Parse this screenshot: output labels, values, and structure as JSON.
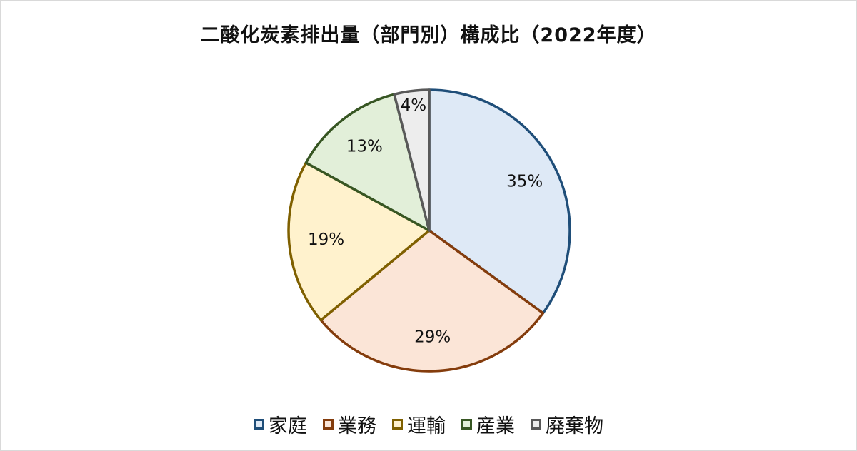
{
  "chart_data": {
    "type": "pie",
    "title": "二酸化炭素排出量（部門別）構成比（2022年度）",
    "categories": [
      "家庭",
      "業務",
      "運輸",
      "産業",
      "廃棄物"
    ],
    "values": [
      35,
      29,
      19,
      13,
      4
    ],
    "labels": [
      "35%",
      "29%",
      "19%",
      "13%",
      "4%"
    ],
    "fill_colors": [
      "#dee9f6",
      "#fbe5d7",
      "#fff2cd",
      "#e2efd9",
      "#ededed"
    ],
    "edge_colors": [
      "#1f4e79",
      "#843c0c",
      "#7f6000",
      "#375623",
      "#595959"
    ],
    "legend": "bottom"
  }
}
